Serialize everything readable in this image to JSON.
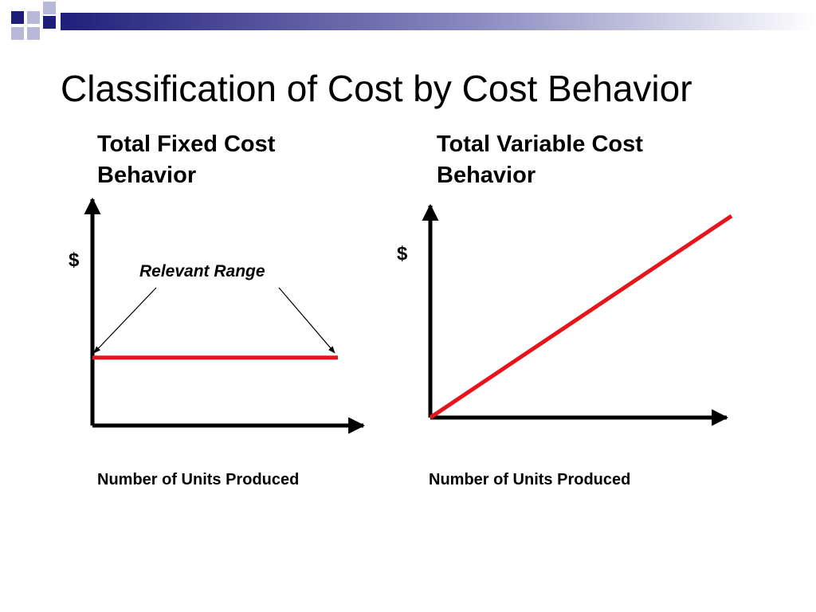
{
  "slide": {
    "title": "Classification of Cost by Cost Behavior",
    "accent_color": "#1f1f7a",
    "accent_light": "#9c9cc8",
    "series_color": "#e8141b"
  },
  "chart_data": [
    {
      "type": "line",
      "title_lines": [
        "Total Fixed Cost",
        "Behavior"
      ],
      "ylabel": "$",
      "xlabel": "Number of Units Produced",
      "annotations": [
        "Relevant Range"
      ],
      "x_range": [
        0,
        1
      ],
      "y_range": [
        0,
        1
      ],
      "series": [
        {
          "x": [
            0,
            1
          ],
          "y": [
            0.3,
            0.3
          ]
        }
      ]
    },
    {
      "type": "line",
      "title_lines": [
        "Total Variable Cost",
        "Behavior"
      ],
      "ylabel": "$",
      "xlabel": "Number of Units Produced",
      "x_range": [
        0,
        1
      ],
      "y_range": [
        0,
        1
      ],
      "series": [
        {
          "x": [
            0,
            1
          ],
          "y": [
            0,
            1
          ]
        }
      ]
    }
  ]
}
